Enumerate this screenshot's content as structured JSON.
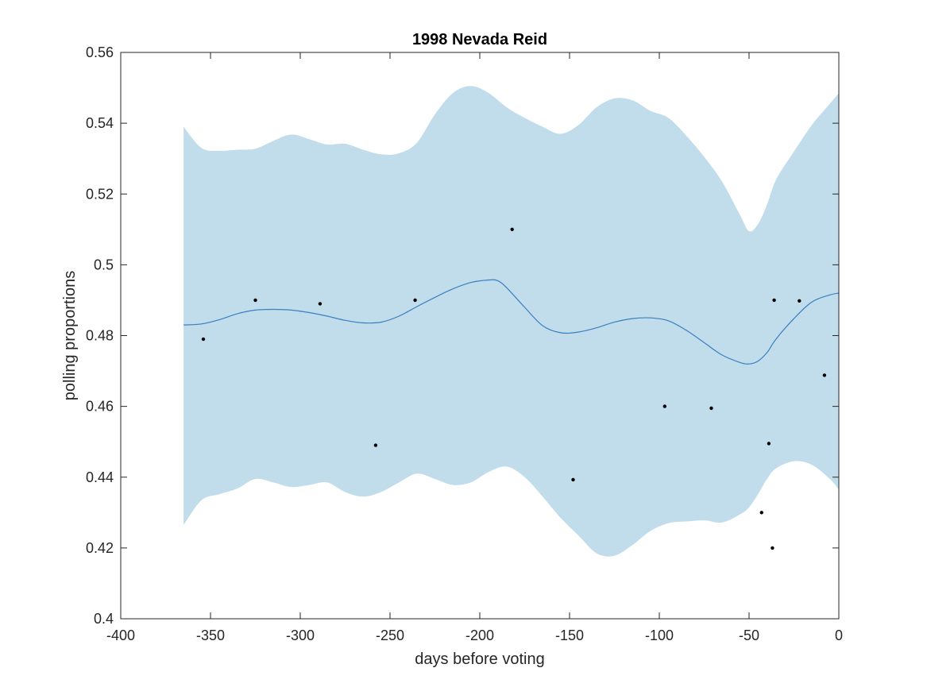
{
  "chart_data": {
    "type": "line",
    "title": "1998 Nevada Reid",
    "xlabel": "days before voting",
    "ylabel": "polling proportions",
    "xlim": [
      -400,
      0
    ],
    "ylim": [
      0.4,
      0.56
    ],
    "xticks": [
      -400,
      -350,
      -300,
      -250,
      -200,
      -150,
      -100,
      -50,
      0
    ],
    "xtick_labels": [
      "-400",
      "-350",
      "-300",
      "-250",
      "-200",
      "-150",
      "-100",
      "-50",
      "0"
    ],
    "yticks": [
      0.4,
      0.42,
      0.44,
      0.46,
      0.48,
      0.5,
      0.52,
      0.54,
      0.56
    ],
    "ytick_labels": [
      "0.4",
      "0.42",
      "0.44",
      "0.46",
      "0.48",
      "0.5",
      "0.52",
      "0.54",
      "0.56"
    ],
    "grid": false,
    "colors": {
      "band": "#c1dcea",
      "mean_line": "#3a7fc2",
      "points": "#000000",
      "axes": "#262626"
    },
    "mean": {
      "x": [
        -365,
        -355,
        -345,
        -335,
        -325,
        -315,
        -305,
        -295,
        -285,
        -275,
        -265,
        -255,
        -245,
        -235,
        -225,
        -215,
        -205,
        -195,
        -190,
        -185,
        -175,
        -165,
        -155,
        -145,
        -135,
        -125,
        -115,
        -105,
        -95,
        -85,
        -75,
        -65,
        -55,
        -50,
        -45,
        -40,
        -35,
        -25,
        -15,
        -5,
        0
      ],
      "y": [
        0.483,
        0.4833,
        0.4845,
        0.4862,
        0.4872,
        0.4874,
        0.4872,
        0.4865,
        0.4855,
        0.4843,
        0.4836,
        0.4838,
        0.4855,
        0.4882,
        0.4908,
        0.4932,
        0.495,
        0.4957,
        0.4955,
        0.4935,
        0.488,
        0.4828,
        0.4808,
        0.481,
        0.4822,
        0.4838,
        0.4848,
        0.485,
        0.4842,
        0.4815,
        0.478,
        0.4745,
        0.4724,
        0.472,
        0.4728,
        0.4752,
        0.479,
        0.4848,
        0.4895,
        0.4915,
        0.492
      ]
    },
    "band": {
      "x": [
        -365,
        -355,
        -345,
        -335,
        -325,
        -315,
        -305,
        -295,
        -285,
        -275,
        -265,
        -255,
        -245,
        -235,
        -225,
        -215,
        -205,
        -195,
        -185,
        -175,
        -165,
        -155,
        -145,
        -135,
        -125,
        -115,
        -105,
        -95,
        -85,
        -75,
        -65,
        -55,
        -50,
        -45,
        -40,
        -35,
        -25,
        -15,
        -5,
        0
      ],
      "upper": [
        0.539,
        0.533,
        0.5322,
        0.5325,
        0.5328,
        0.535,
        0.5368,
        0.5355,
        0.534,
        0.5342,
        0.5325,
        0.5312,
        0.5315,
        0.5345,
        0.5425,
        0.5485,
        0.5505,
        0.5485,
        0.5445,
        0.5415,
        0.539,
        0.537,
        0.5395,
        0.5445,
        0.547,
        0.5465,
        0.5435,
        0.5415,
        0.5365,
        0.5305,
        0.5235,
        0.514,
        0.5095,
        0.5115,
        0.517,
        0.524,
        0.532,
        0.5395,
        0.5455,
        0.5485
      ],
      "lower": [
        0.4265,
        0.4335,
        0.4352,
        0.4368,
        0.4395,
        0.4385,
        0.4372,
        0.4378,
        0.4385,
        0.4358,
        0.4345,
        0.4358,
        0.4385,
        0.441,
        0.4395,
        0.4378,
        0.4385,
        0.4415,
        0.443,
        0.44,
        0.4345,
        0.4285,
        0.4235,
        0.4185,
        0.4178,
        0.4208,
        0.4248,
        0.427,
        0.4275,
        0.4278,
        0.4272,
        0.4295,
        0.4315,
        0.4352,
        0.4395,
        0.4425,
        0.4445,
        0.4435,
        0.4395,
        0.4365
      ]
    },
    "points": {
      "x": [
        -354,
        -325,
        -289,
        -258,
        -236,
        -182,
        -148,
        -97,
        -71,
        -43,
        -39,
        -37,
        -36,
        -22,
        -8
      ],
      "y": [
        0.479,
        0.49,
        0.489,
        0.449,
        0.49,
        0.51,
        0.4393,
        0.46,
        0.4595,
        0.43,
        0.4495,
        0.42,
        0.49,
        0.4898,
        0.4688
      ]
    }
  }
}
